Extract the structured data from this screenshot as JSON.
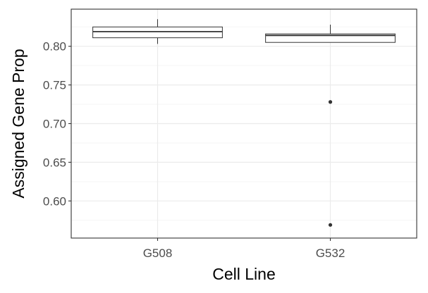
{
  "chart_data": {
    "type": "boxplot",
    "title": "",
    "xlabel": "Cell Line",
    "ylabel": "Assigned Gene Prop",
    "categories": [
      "G508",
      "G532"
    ],
    "boxes": [
      {
        "category": "G508",
        "min": 0.803,
        "q1": 0.811,
        "median": 0.819,
        "q3": 0.825,
        "max": 0.835,
        "outliers": []
      },
      {
        "category": "G532",
        "min": 0.805,
        "q1": 0.805,
        "median": 0.814,
        "q3": 0.816,
        "max": 0.828,
        "outliers": [
          0.728,
          0.569
        ]
      }
    ],
    "ylim": [
      0.552,
      0.848
    ],
    "y_ticks": [
      0.6,
      0.65,
      0.7,
      0.75,
      0.8
    ],
    "y_tick_labels": [
      "0.60",
      "0.65",
      "0.70",
      "0.75",
      "0.80"
    ],
    "grid": true,
    "theme": "bw",
    "colors": {
      "box_fill": "#ffffff",
      "box_line": "#333333",
      "grid_major": "#ebebeb",
      "grid_minor": "#f5f5f5",
      "panel_border": "#333333",
      "outlier": "#333333"
    }
  }
}
